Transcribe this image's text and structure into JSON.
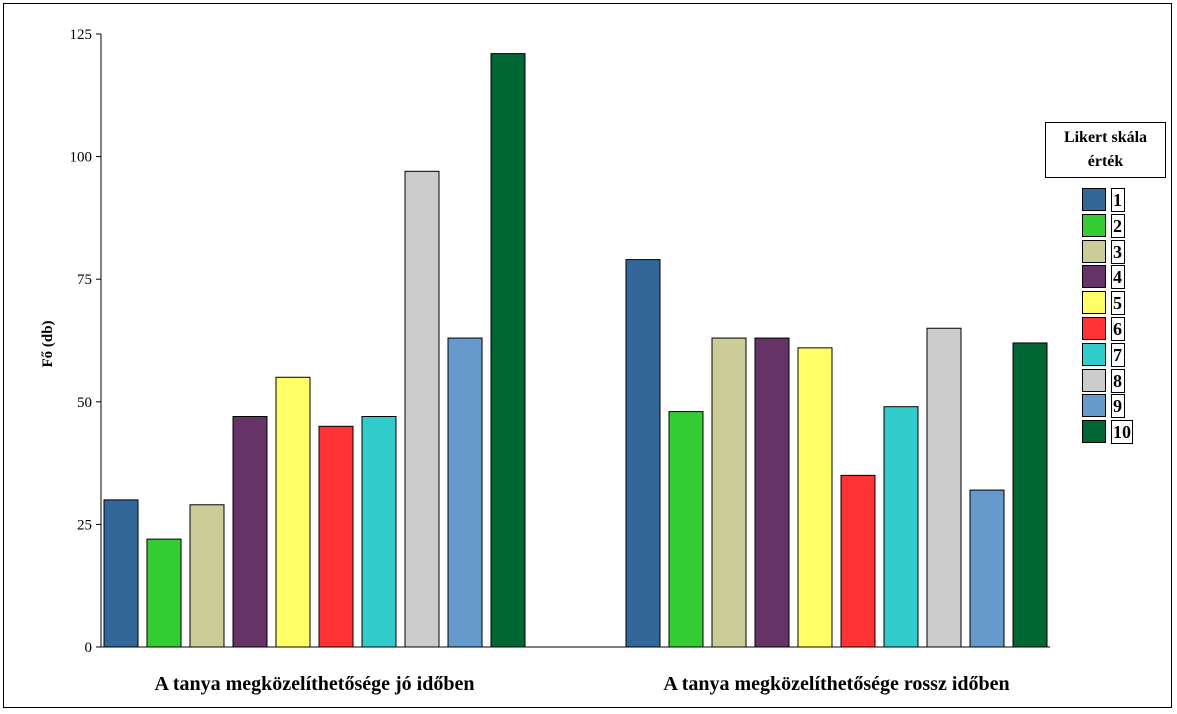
{
  "chart_data": {
    "type": "bar",
    "categories": [
      "A tanya megközelíthetősége jó időben",
      "A tanya megközelíthetősége rossz időben"
    ],
    "ylabel": "Fő (db)",
    "ylim": [
      0,
      125
    ],
    "yticks": [
      "0",
      "25",
      "50",
      "75",
      "100",
      "125"
    ],
    "grid": false,
    "legend_title": "Likert skála\nérték",
    "legend_position": "right",
    "series": [
      {
        "name": "1",
        "color": "#336699",
        "values": [
          30,
          79
        ]
      },
      {
        "name": "2",
        "color": "#33cc33",
        "values": [
          22,
          48
        ]
      },
      {
        "name": "3",
        "color": "#cccc99",
        "values": [
          29,
          63
        ]
      },
      {
        "name": "4",
        "color": "#663366",
        "values": [
          47,
          63
        ]
      },
      {
        "name": "5",
        "color": "#ffff66",
        "values": [
          55,
          61
        ]
      },
      {
        "name": "6",
        "color": "#ff3333",
        "values": [
          45,
          35
        ]
      },
      {
        "name": "7",
        "color": "#33cccc",
        "values": [
          47,
          49
        ]
      },
      {
        "name": "8",
        "color": "#cccccc",
        "values": [
          97,
          65
        ]
      },
      {
        "name": "9",
        "color": "#6699cc",
        "values": [
          63,
          32
        ]
      },
      {
        "name": "10",
        "color": "#006633",
        "values": [
          121,
          62
        ]
      }
    ]
  }
}
